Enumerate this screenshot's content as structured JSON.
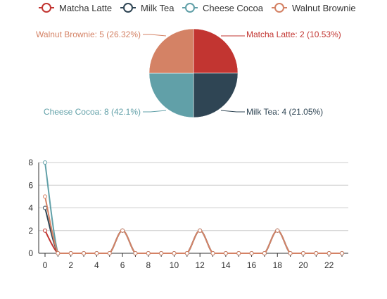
{
  "colors": {
    "Matcha Latte": "#c23531",
    "Milk Tea": "#2f4554",
    "Cheese Cocoa": "#61a0a8",
    "Walnut Brownie": "#d48265",
    "axis": "#333333",
    "tick_text": "#333333",
    "grid": "#cccccc"
  },
  "legend": {
    "position": "top-right",
    "items": [
      "Matcha Latte",
      "Milk Tea",
      "Cheese Cocoa",
      "Walnut Brownie"
    ]
  },
  "chart_data": [
    {
      "type": "pie",
      "slices": [
        {
          "name": "Matcha Latte",
          "value": 2,
          "percent": "10.53%",
          "label": "Matcha Latte: 2 (10.53%)",
          "display_angle_deg": 90
        },
        {
          "name": "Milk Tea",
          "value": 4,
          "percent": "21.05%",
          "label": "Milk Tea: 4 (21.05%)",
          "display_angle_deg": 90
        },
        {
          "name": "Cheese Cocoa",
          "value": 8,
          "percent": "42.1%",
          "label": "Cheese Cocoa: 8 (42.1%)",
          "display_angle_deg": 90
        },
        {
          "name": "Walnut Brownie",
          "value": 5,
          "percent": "26.32%",
          "label": "Walnut Brownie: 5 (26.32%)",
          "display_angle_deg": 90
        }
      ]
    },
    {
      "type": "line",
      "smooth": true,
      "x": [
        0,
        1,
        2,
        3,
        4,
        5,
        6,
        7,
        8,
        9,
        10,
        11,
        12,
        13,
        14,
        15,
        16,
        17,
        18,
        19,
        20,
        21,
        22,
        23
      ],
      "xticks": [
        0,
        2,
        4,
        6,
        8,
        10,
        12,
        14,
        16,
        18,
        20,
        22
      ],
      "ylim": [
        0,
        8
      ],
      "yticks": [
        0,
        2,
        4,
        6,
        8
      ],
      "grid": true,
      "series": [
        {
          "name": "Matcha Latte",
          "values": [
            2,
            0,
            0,
            0,
            0,
            0,
            2,
            0,
            0,
            0,
            0,
            0,
            2,
            0,
            0,
            0,
            0,
            0,
            2,
            0,
            0,
            0,
            0,
            0
          ]
        },
        {
          "name": "Milk Tea",
          "values": [
            4,
            0,
            0,
            0,
            0,
            0,
            2,
            0,
            0,
            0,
            0,
            0,
            2,
            0,
            0,
            0,
            0,
            0,
            2,
            0,
            0,
            0,
            0,
            0
          ]
        },
        {
          "name": "Cheese Cocoa",
          "values": [
            8,
            0,
            0,
            0,
            0,
            0,
            2,
            0,
            0,
            0,
            0,
            0,
            2,
            0,
            0,
            0,
            0,
            0,
            2,
            0,
            0,
            0,
            0,
            0
          ]
        },
        {
          "name": "Walnut Brownie",
          "values": [
            5,
            0,
            0,
            0,
            0,
            0,
            2,
            0,
            0,
            0,
            0,
            0,
            2,
            0,
            0,
            0,
            0,
            0,
            2,
            0,
            0,
            0,
            0,
            0
          ]
        }
      ]
    }
  ]
}
